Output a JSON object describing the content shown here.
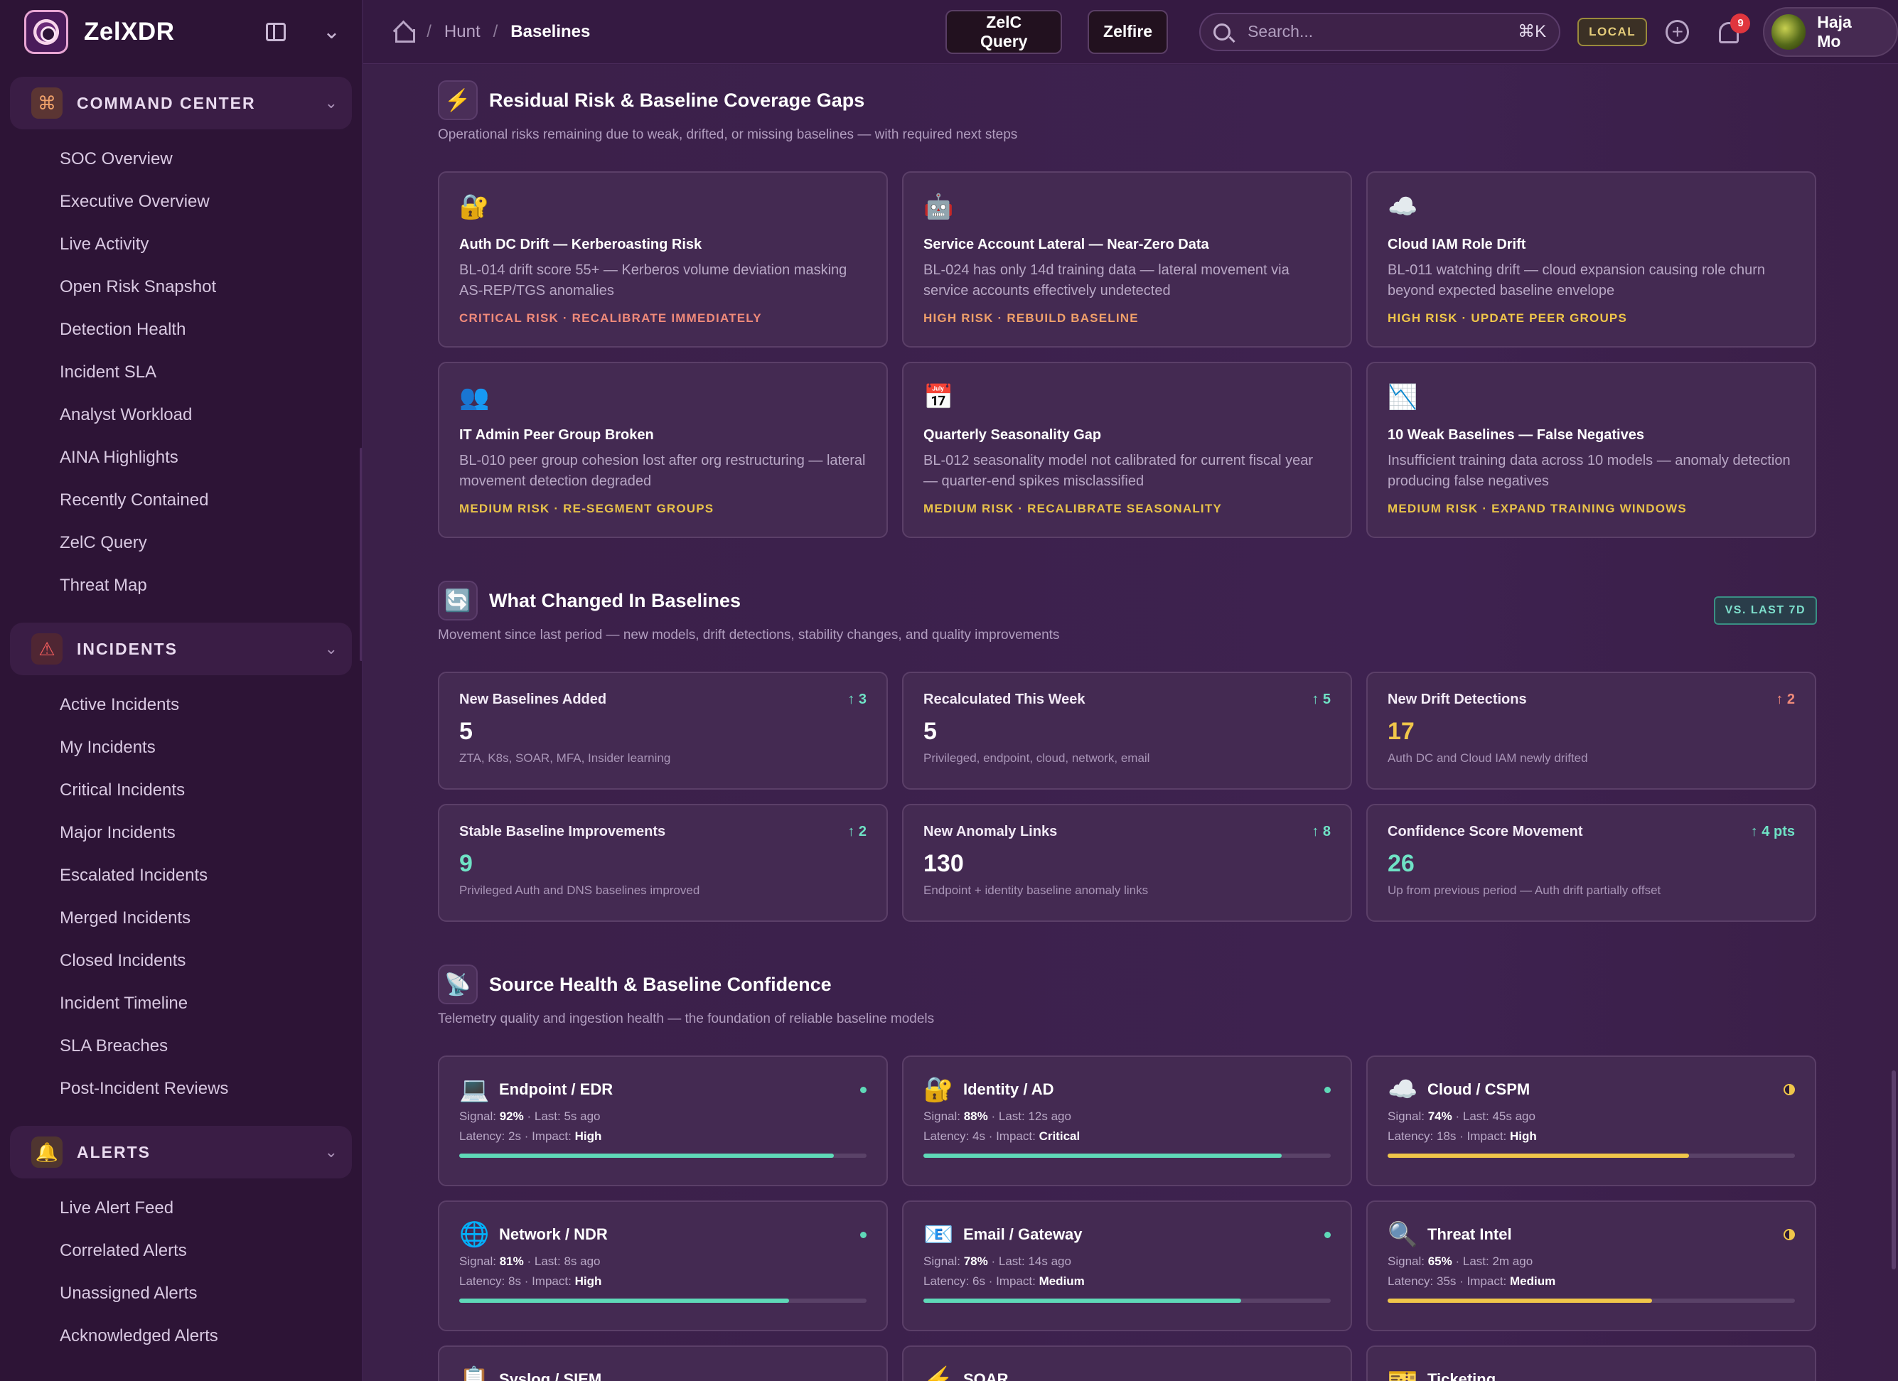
{
  "app": {
    "name": "ZelXDR"
  },
  "sidebar": {
    "groups": [
      {
        "label": "COMMAND CENTER",
        "icon": "command-icon",
        "items": [
          "SOC Overview",
          "Executive Overview",
          "Live Activity",
          "Open Risk Snapshot",
          "Detection Health",
          "Incident SLA",
          "Analyst Workload",
          "AINA Highlights",
          "Recently Contained",
          "ZelC Query",
          "Threat Map"
        ]
      },
      {
        "label": "INCIDENTS",
        "icon": "warning-triangle-icon",
        "items": [
          "Active Incidents",
          "My Incidents",
          "Critical Incidents",
          "Major Incidents",
          "Escalated Incidents",
          "Merged Incidents",
          "Closed Incidents",
          "Incident Timeline",
          "SLA Breaches",
          "Post-Incident Reviews"
        ]
      },
      {
        "label": "ALERTS",
        "icon": "bell-icon",
        "items": [
          "Live Alert Feed",
          "Correlated Alerts",
          "Unassigned Alerts",
          "Acknowledged Alerts"
        ]
      }
    ]
  },
  "topbar": {
    "breadcrumb": [
      "Hunt",
      "Baselines"
    ],
    "query_button": "ZelC Query",
    "zelfire_button": "Zelfire",
    "search_placeholder": "Search...",
    "search_shortcut": "⌘K",
    "env_badge": "LOCAL",
    "notification_count": "9",
    "user_name": "Haja Mo"
  },
  "residual": {
    "title": "Residual Risk & Baseline Coverage Gaps",
    "subtitle": "Operational risks remaining due to weak, drifted, or missing baselines — with required next steps",
    "cards": [
      {
        "emoji": "🔐",
        "title": "Auth DC Drift — Kerberoasting Risk",
        "desc": "BL-014 drift score 55+ — Kerberos volume deviation masking AS-REP/TGS anomalies",
        "tag": "CRITICAL RISK · RECALIBRATE IMMEDIATELY",
        "level": "crit"
      },
      {
        "emoji": "🤖",
        "title": "Service Account Lateral — Near-Zero Data",
        "desc": "BL-024 has only 14d training data — lateral movement via service accounts effectively undetected",
        "tag": "HIGH RISK · REBUILD BASELINE",
        "level": "high"
      },
      {
        "emoji": "☁️",
        "title": "Cloud IAM Role Drift",
        "desc": "BL-011 watching drift — cloud expansion causing role churn beyond expected baseline envelope",
        "tag": "HIGH RISK · UPDATE PEER GROUPS",
        "level": "high-y"
      },
      {
        "emoji": "👥",
        "title": "IT Admin Peer Group Broken",
        "desc": "BL-010 peer group cohesion lost after org restructuring — lateral movement detection degraded",
        "tag": "MEDIUM RISK · RE-SEGMENT GROUPS",
        "level": "med"
      },
      {
        "emoji": "📅",
        "title": "Quarterly Seasonality Gap",
        "desc": "BL-012 seasonality model not calibrated for current fiscal year — quarter-end spikes misclassified",
        "tag": "MEDIUM RISK · RECALIBRATE SEASONALITY",
        "level": "med"
      },
      {
        "emoji": "📉",
        "title": "10 Weak Baselines — False Negatives",
        "desc": "Insufficient training data across 10 models — anomaly detection producing false negatives",
        "tag": "MEDIUM RISK · EXPAND TRAINING WINDOWS",
        "level": "med"
      }
    ]
  },
  "changes": {
    "title": "What Changed In Baselines",
    "subtitle": "Movement since last period — new models, drift detections, stability changes, and quality improvements",
    "badge": "VS. LAST 7D",
    "cards": [
      {
        "label": "New Baselines Added",
        "delta": "↑ 3",
        "delta_kind": "up",
        "value": "5",
        "value_kind": "plain",
        "note": "ZTA, K8s, SOAR, MFA, Insider learning"
      },
      {
        "label": "Recalculated This Week",
        "delta": "↑ 5",
        "delta_kind": "up",
        "value": "5",
        "value_kind": "plain",
        "note": "Privileged, endpoint, cloud, network, email"
      },
      {
        "label": "New Drift Detections",
        "delta": "↑ 2",
        "delta_kind": "warn",
        "value": "17",
        "value_kind": "amber",
        "note": "Auth DC and Cloud IAM newly drifted"
      },
      {
        "label": "Stable Baseline Improvements",
        "delta": "↑ 2",
        "delta_kind": "up",
        "value": "9",
        "value_kind": "teal",
        "note": "Privileged Auth and DNS baselines improved"
      },
      {
        "label": "New Anomaly Links",
        "delta": "↑ 8",
        "delta_kind": "up",
        "value": "130",
        "value_kind": "plain",
        "note": "Endpoint + identity baseline anomaly links"
      },
      {
        "label": "Confidence Score Movement",
        "delta": "↑ 4 pts",
        "delta_kind": "up",
        "value": "26",
        "value_kind": "teal",
        "note": "Up from previous period — Auth drift partially offset"
      }
    ]
  },
  "sources": {
    "title": "Source Health & Baseline Confidence",
    "subtitle": "Telemetry quality and ingestion health — the foundation of reliable baseline models",
    "cards": [
      {
        "emoji": "💻",
        "name": "Endpoint / EDR",
        "status": "ok",
        "signal": "92%",
        "last": "5s ago",
        "latency": "2s",
        "impact": "High",
        "fill": 0.92
      },
      {
        "emoji": "🔐",
        "name": "Identity / AD",
        "status": "ok",
        "signal": "88%",
        "last": "12s ago",
        "latency": "4s",
        "impact": "Critical",
        "fill": 0.88
      },
      {
        "emoji": "☁️",
        "name": "Cloud / CSPM",
        "status": "warn",
        "signal": "74%",
        "last": "45s ago",
        "latency": "18s",
        "impact": "High",
        "fill": 0.74
      },
      {
        "emoji": "🌐",
        "name": "Network / NDR",
        "status": "ok",
        "signal": "81%",
        "last": "8s ago",
        "latency": "8s",
        "impact": "High",
        "fill": 0.81
      },
      {
        "emoji": "📧",
        "name": "Email / Gateway",
        "status": "ok",
        "signal": "78%",
        "last": "14s ago",
        "latency": "6s",
        "impact": "Medium",
        "fill": 0.78
      },
      {
        "emoji": "🔍",
        "name": "Threat Intel",
        "status": "warn",
        "signal": "65%",
        "last": "2m ago",
        "latency": "35s",
        "impact": "Medium",
        "fill": 0.65
      }
    ],
    "partial_cards": [
      {
        "emoji": "📋",
        "name": "Syslog / SIEM"
      },
      {
        "emoji": "⚡",
        "name": "SOAR"
      },
      {
        "emoji": "🎫",
        "name": "Ticketing"
      }
    ],
    "labels": {
      "signal": "Signal:",
      "last": "· Last:",
      "latency": "Latency:",
      "impact": "· Impact:"
    }
  }
}
